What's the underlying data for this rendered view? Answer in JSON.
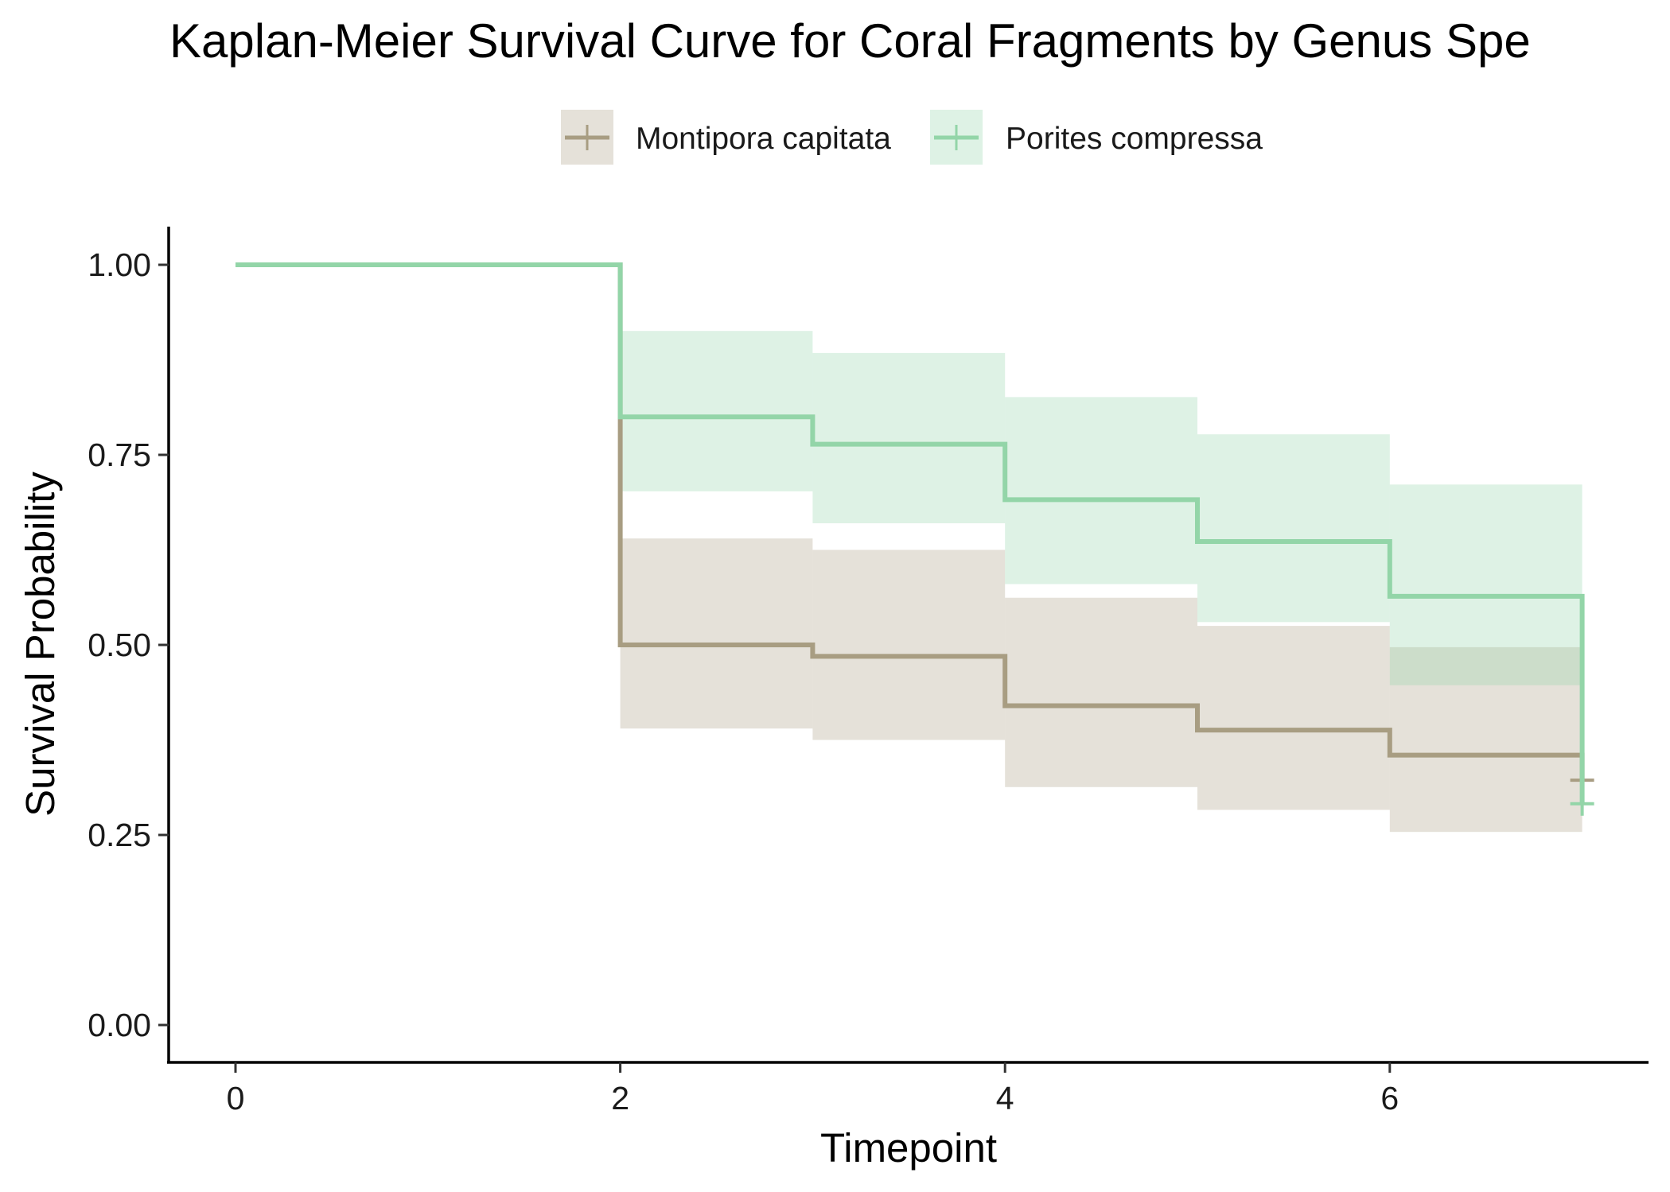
{
  "chart_data": {
    "type": "line",
    "subtype": "kaplan-meier step survival curve with confidence bands",
    "title": "Kaplan-Meier Survival Curve for Coral Fragments by Genus Spe",
    "xlabel": "Timepoint",
    "ylabel": "Survival Probability",
    "xlim": [
      -0.05,
      7.35
    ],
    "ylim": [
      -0.05,
      1.05
    ],
    "x_ticks": [
      0,
      2,
      4,
      6
    ],
    "x_tick_labels": [
      "0",
      "2",
      "4",
      "6"
    ],
    "y_ticks": [
      0,
      0.25,
      0.5,
      0.75,
      1
    ],
    "y_tick_labels": [
      "0.00",
      "0.25",
      "0.50",
      "0.75",
      "1.00"
    ],
    "grid": false,
    "legend_position": "top",
    "series": [
      {
        "name": "Montipora capitata",
        "color": "#a89d82",
        "band_color": "#a89d82",
        "time": [
          0,
          2,
          3,
          4,
          5,
          6,
          7
        ],
        "survival": [
          1.0,
          0.5,
          0.485,
          0.42,
          0.388,
          0.355,
          0.322
        ],
        "ci_lower": [
          1.0,
          0.39,
          0.375,
          0.313,
          0.283,
          0.254,
          0.254
        ],
        "ci_upper": [
          1.0,
          0.64,
          0.625,
          0.562,
          0.525,
          0.497,
          0.497
        ],
        "censor_times": [
          7
        ],
        "censor_values": [
          0.322
        ]
      },
      {
        "name": "Porites compressa",
        "color": "#93d5a8",
        "band_color": "#93d5a8",
        "time": [
          0,
          2,
          3,
          4,
          5,
          6,
          7
        ],
        "survival": [
          1.0,
          0.8,
          0.764,
          0.691,
          0.636,
          0.564,
          0.291
        ],
        "ci_lower": [
          1.0,
          0.702,
          0.66,
          0.58,
          0.53,
          0.447,
          0.447
        ],
        "ci_upper": [
          1.0,
          0.913,
          0.884,
          0.826,
          0.777,
          0.711,
          0.711
        ],
        "censor_times": [
          7
        ],
        "censor_values": [
          0.291
        ]
      }
    ]
  }
}
